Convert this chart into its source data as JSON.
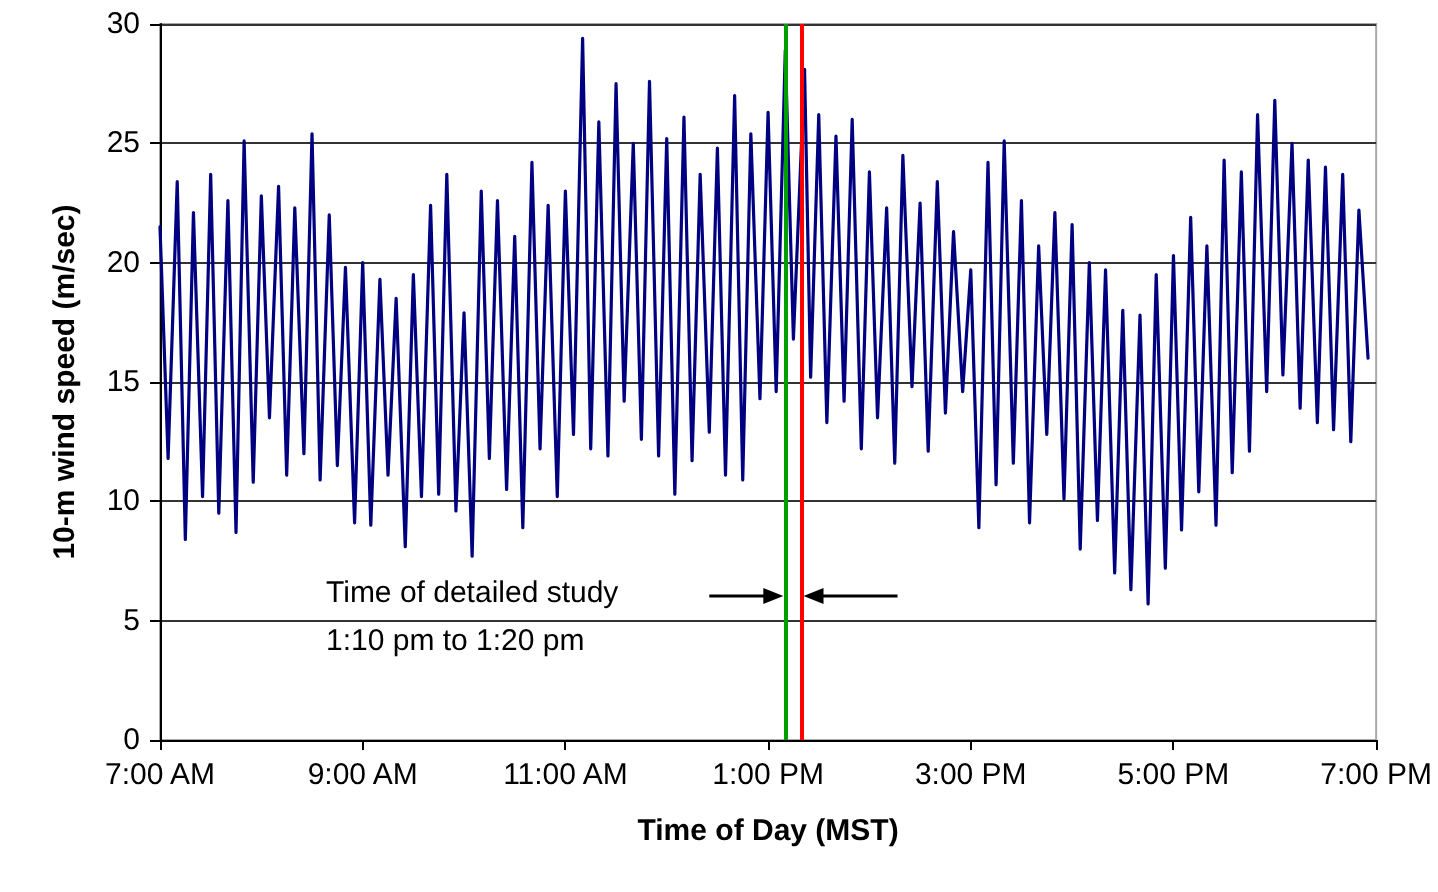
{
  "chart_data": {
    "type": "line",
    "xlabel": "Time of Day (MST)",
    "ylabel": "10-m wind speed (m/sec)",
    "xlim": [
      7,
      19
    ],
    "ylim": [
      0,
      30
    ],
    "xticks": [
      {
        "value": 7,
        "label": "7:00 AM"
      },
      {
        "value": 9,
        "label": "9:00 AM"
      },
      {
        "value": 11,
        "label": "11:00 AM"
      },
      {
        "value": 13,
        "label": "1:00 PM"
      },
      {
        "value": 15,
        "label": "3:00 PM"
      },
      {
        "value": 17,
        "label": "5:00 PM"
      },
      {
        "value": 19,
        "label": "7:00 PM"
      }
    ],
    "yticks": [
      0,
      5,
      10,
      15,
      20,
      25,
      30
    ],
    "grid": "y",
    "marker": "none",
    "line_style": "solid",
    "ref_lines": [
      {
        "axis": "x",
        "value": 13.17,
        "color": "#00a000"
      },
      {
        "axis": "x",
        "value": 13.33,
        "color": "#ff0000"
      }
    ],
    "annotations": [
      "Time of detailed study",
      "1:10 pm to 1:20 pm"
    ],
    "x": [
      7,
      7.08,
      7.17,
      7.25,
      7.33,
      7.42,
      7.5,
      7.58,
      7.67,
      7.75,
      7.83,
      7.92,
      8,
      8.08,
      8.17,
      8.25,
      8.33,
      8.42,
      8.5,
      8.58,
      8.67,
      8.75,
      8.83,
      8.92,
      9,
      9.08,
      9.17,
      9.25,
      9.33,
      9.42,
      9.5,
      9.58,
      9.67,
      9.75,
      9.83,
      9.92,
      10,
      10.08,
      10.17,
      10.25,
      10.33,
      10.42,
      10.5,
      10.58,
      10.67,
      10.75,
      10.83,
      10.92,
      11,
      11.08,
      11.17,
      11.25,
      11.33,
      11.42,
      11.5,
      11.58,
      11.67,
      11.75,
      11.83,
      11.92,
      12,
      12.08,
      12.17,
      12.25,
      12.33,
      12.42,
      12.5,
      12.58,
      12.67,
      12.75,
      12.83,
      12.92,
      13,
      13.08,
      13.17,
      13.25,
      13.36,
      13.42,
      13.5,
      13.58,
      13.67,
      13.75,
      13.83,
      13.92,
      14,
      14.08,
      14.17,
      14.25,
      14.33,
      14.42,
      14.5,
      14.58,
      14.67,
      14.75,
      14.83,
      14.92,
      15,
      15.08,
      15.17,
      15.25,
      15.33,
      15.42,
      15.5,
      15.58,
      15.67,
      15.75,
      15.83,
      15.92,
      16,
      16.08,
      16.17,
      16.25,
      16.33,
      16.42,
      16.5,
      16.58,
      16.67,
      16.75,
      16.83,
      16.92,
      17,
      17.08,
      17.17,
      17.25,
      17.33,
      17.42,
      17.5,
      17.58,
      17.67,
      17.75,
      17.83,
      17.92,
      18,
      18.08,
      18.17,
      18.25,
      18.33,
      18.42,
      18.5,
      18.58,
      18.67,
      18.75,
      18.83,
      18.92
    ],
    "series": [
      {
        "color": "#000080",
        "values": [
          21.5,
          11.8,
          23.4,
          8.4,
          22.1,
          10.2,
          23.7,
          9.5,
          22.6,
          8.7,
          25.1,
          10.8,
          22.8,
          13.5,
          23.2,
          11.1,
          22.3,
          12.0,
          25.4,
          10.9,
          22.0,
          11.5,
          19.8,
          9.1,
          20.0,
          9.0,
          19.3,
          11.1,
          18.5,
          8.1,
          19.5,
          10.2,
          22.4,
          10.3,
          23.7,
          9.6,
          17.9,
          7.7,
          23.0,
          11.8,
          22.6,
          10.5,
          21.1,
          8.9,
          24.2,
          12.2,
          22.4,
          10.2,
          23.0,
          12.8,
          29.4,
          12.2,
          25.9,
          11.9,
          27.5,
          14.2,
          25.0,
          12.6,
          27.6,
          11.9,
          25.2,
          10.3,
          26.1,
          11.7,
          23.7,
          12.9,
          24.8,
          11.1,
          27.0,
          10.9,
          25.4,
          14.3,
          26.3,
          14.6,
          28.9,
          16.8,
          28.1,
          15.2,
          26.2,
          13.3,
          25.3,
          14.2,
          26.0,
          12.2,
          23.8,
          13.5,
          22.3,
          11.6,
          24.5,
          14.8,
          22.5,
          12.1,
          23.4,
          13.7,
          21.3,
          14.6,
          19.7,
          8.9,
          24.2,
          10.7,
          25.1,
          11.6,
          22.6,
          9.1,
          20.7,
          12.8,
          22.1,
          10.1,
          21.6,
          8.0,
          20.0,
          9.2,
          19.7,
          7.0,
          18.0,
          6.3,
          17.8,
          5.7,
          19.5,
          7.2,
          20.3,
          8.8,
          21.9,
          10.4,
          20.7,
          9.0,
          24.3,
          11.2,
          23.8,
          12.1,
          26.2,
          14.6,
          26.8,
          15.3,
          25.0,
          13.9,
          24.3,
          13.3,
          24.0,
          13.0,
          23.7,
          12.5,
          22.2,
          16.0
        ]
      }
    ]
  }
}
